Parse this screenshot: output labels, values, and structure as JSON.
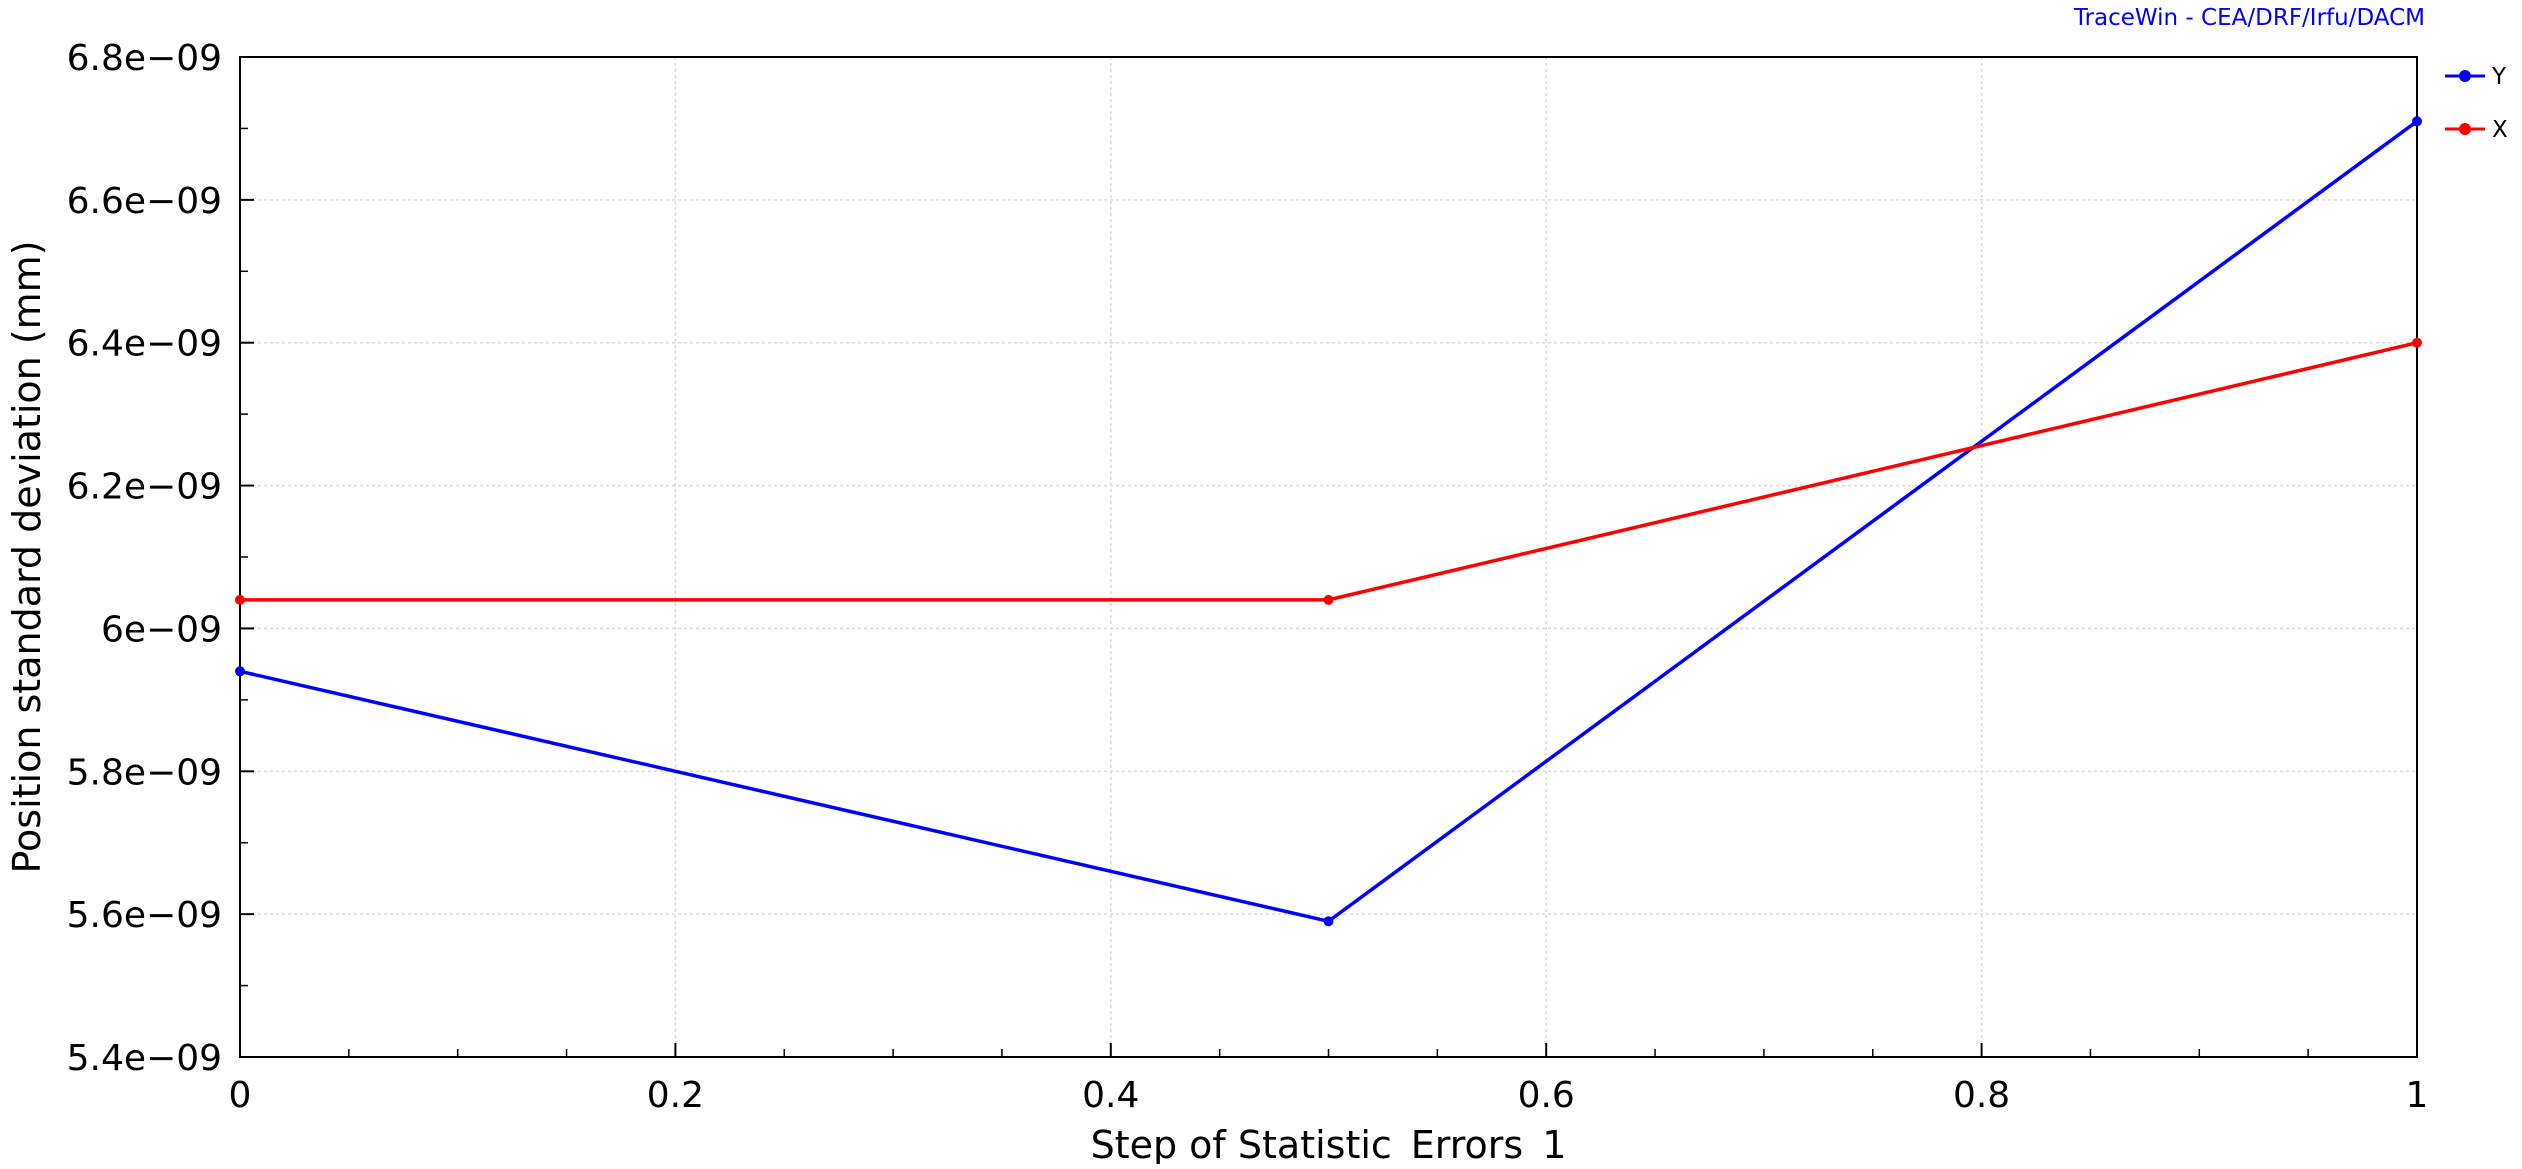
{
  "credit": "TraceWin - CEA/DRF/Irfu/DACM",
  "colors": {
    "credit": "#0000ff",
    "grid": "#d9d9d9",
    "axis": "#000000"
  },
  "chart_data": {
    "type": "line",
    "xlabel": "Step of Statistic_Errors_1",
    "ylabel": "Position standard deviation (mm)",
    "xlim": [
      0,
      1
    ],
    "ylim": [
      5.4e-09,
      6.8e-09
    ],
    "x_ticks": [
      0,
      0.2,
      0.4,
      0.6,
      0.8,
      1
    ],
    "x_tick_labels": [
      "0",
      "0.2",
      "0.4",
      "0.6",
      "0.8",
      "1"
    ],
    "y_ticks": [
      5.4e-09,
      5.6e-09,
      5.8e-09,
      6e-09,
      6.2e-09,
      6.4e-09,
      6.6e-09,
      6.8e-09
    ],
    "y_tick_labels": [
      "5.4e−09",
      "5.6e−09",
      "5.8e−09",
      "6e−09",
      "6.2e−09",
      "6.4e−09",
      "6.6e−09",
      "6.8e−09"
    ],
    "grid": true,
    "legend": "top-right",
    "x": [
      0,
      0.5,
      1
    ],
    "series": [
      {
        "name": "Y",
        "color": "#0000ff",
        "values": [
          5.94e-09,
          5.59e-09,
          6.71e-09
        ]
      },
      {
        "name": "X",
        "color": "#ff0000",
        "values": [
          6.04e-09,
          6.04e-09,
          6.4e-09
        ]
      }
    ]
  }
}
